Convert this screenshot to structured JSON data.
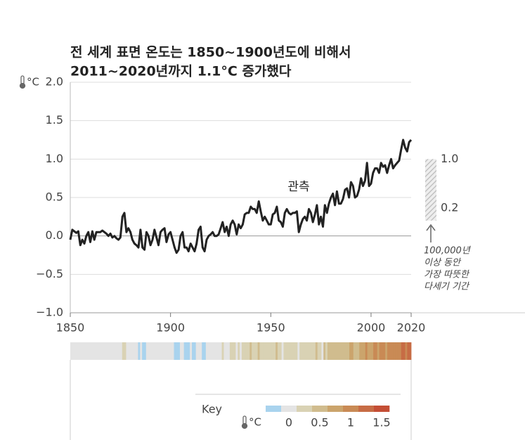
{
  "chart_data": {
    "type": "line",
    "title": [
      "전 세계 표면 온도는 1850~1900년도에 비해서",
      "2011~2020년까지 1.1°C 증가했다"
    ],
    "y_unit": "°C",
    "series_label": "관측",
    "color": "#222222",
    "grid": true,
    "xlim": [
      1850,
      2020
    ],
    "xticks": [
      1850,
      1900,
      1950,
      2000,
      2020
    ],
    "ylim": [
      -1.0,
      2.0
    ],
    "yticks": [
      {
        "value": 2.0,
        "label": "2.0"
      },
      {
        "value": 1.5,
        "label": "1.5"
      },
      {
        "value": 1.0,
        "label": "1.0"
      },
      {
        "value": 0.5,
        "label": "0.5"
      },
      {
        "value": 0.0,
        "label": "0.0"
      },
      {
        "value": -0.5,
        "label": "−0.5"
      },
      {
        "value": -1.0,
        "label": "−1.0"
      }
    ],
    "x": [
      1850,
      1851,
      1852,
      1853,
      1854,
      1855,
      1856,
      1857,
      1858,
      1859,
      1860,
      1861,
      1862,
      1863,
      1864,
      1865,
      1866,
      1867,
      1868,
      1869,
      1870,
      1871,
      1872,
      1873,
      1874,
      1875,
      1876,
      1877,
      1878,
      1879,
      1880,
      1881,
      1882,
      1883,
      1884,
      1885,
      1886,
      1887,
      1888,
      1889,
      1890,
      1891,
      1892,
      1893,
      1894,
      1895,
      1896,
      1897,
      1898,
      1899,
      1900,
      1901,
      1902,
      1903,
      1904,
      1905,
      1906,
      1907,
      1908,
      1909,
      1910,
      1911,
      1912,
      1913,
      1914,
      1915,
      1916,
      1917,
      1918,
      1919,
      1920,
      1921,
      1922,
      1923,
      1924,
      1925,
      1926,
      1927,
      1928,
      1929,
      1930,
      1931,
      1932,
      1933,
      1934,
      1935,
      1936,
      1937,
      1938,
      1939,
      1940,
      1941,
      1942,
      1943,
      1944,
      1945,
      1946,
      1947,
      1948,
      1949,
      1950,
      1951,
      1952,
      1953,
      1954,
      1955,
      1956,
      1957,
      1958,
      1959,
      1960,
      1961,
      1962,
      1963,
      1964,
      1965,
      1966,
      1967,
      1968,
      1969,
      1970,
      1971,
      1972,
      1973,
      1974,
      1975,
      1976,
      1977,
      1978,
      1979,
      1980,
      1981,
      1982,
      1983,
      1984,
      1985,
      1986,
      1987,
      1988,
      1989,
      1990,
      1991,
      1992,
      1993,
      1994,
      1995,
      1996,
      1997,
      1998,
      1999,
      2000,
      2001,
      2002,
      2003,
      2004,
      2005,
      2006,
      2007,
      2008,
      2009,
      2010,
      2011,
      2012,
      2013,
      2014,
      2015,
      2016,
      2017,
      2018,
      2019,
      2020
    ],
    "values": [
      -0.05,
      0.08,
      0.06,
      0.04,
      0.06,
      -0.12,
      -0.05,
      -0.1,
      0.0,
      0.05,
      -0.08,
      0.06,
      -0.05,
      0.05,
      0.05,
      0.05,
      0.07,
      0.05,
      0.03,
      0.0,
      0.03,
      -0.02,
      0.0,
      -0.03,
      -0.05,
      -0.02,
      0.25,
      0.3,
      0.05,
      0.1,
      0.05,
      -0.05,
      -0.1,
      -0.12,
      -0.15,
      0.08,
      -0.15,
      -0.18,
      0.05,
      0.0,
      -0.12,
      -0.05,
      0.08,
      -0.02,
      -0.12,
      0.05,
      0.08,
      0.1,
      -0.08,
      0.02,
      0.05,
      -0.05,
      -0.15,
      -0.22,
      -0.18,
      0.0,
      0.05,
      -0.15,
      -0.15,
      -0.2,
      -0.1,
      -0.15,
      -0.2,
      -0.1,
      0.08,
      0.12,
      -0.15,
      -0.2,
      -0.05,
      0.0,
      0.02,
      0.05,
      0.0,
      0.0,
      0.02,
      0.1,
      0.18,
      0.05,
      0.12,
      0.0,
      0.15,
      0.2,
      0.15,
      0.02,
      0.15,
      0.1,
      0.15,
      0.28,
      0.3,
      0.3,
      0.38,
      0.35,
      0.35,
      0.3,
      0.45,
      0.32,
      0.2,
      0.25,
      0.2,
      0.15,
      0.15,
      0.28,
      0.3,
      0.38,
      0.2,
      0.18,
      0.12,
      0.3,
      0.35,
      0.3,
      0.28,
      0.3,
      0.3,
      0.32,
      0.05,
      0.15,
      0.22,
      0.25,
      0.2,
      0.35,
      0.3,
      0.18,
      0.28,
      0.4,
      0.15,
      0.25,
      0.12,
      0.4,
      0.3,
      0.42,
      0.5,
      0.55,
      0.4,
      0.58,
      0.42,
      0.42,
      0.48,
      0.6,
      0.62,
      0.5,
      0.7,
      0.65,
      0.5,
      0.52,
      0.6,
      0.75,
      0.65,
      0.72,
      0.95,
      0.65,
      0.68,
      0.82,
      0.88,
      0.88,
      0.82,
      0.95,
      0.9,
      0.92,
      0.82,
      0.92,
      1.0,
      0.88,
      0.92,
      0.95,
      0.98,
      1.12,
      1.25,
      1.15,
      1.1,
      1.22,
      1.25
    ],
    "warm_period": {
      "range": [
        0.2,
        1.0
      ],
      "labels": [
        "1.0",
        "0.2"
      ],
      "note": [
        "100,000년",
        "이상 동안",
        "가장 따뜻한",
        "다세기 기간"
      ]
    },
    "key": {
      "title": "Key",
      "unit": "°C",
      "range": [
        -0.375,
        1.625
      ],
      "ticks": [
        0,
        0.5,
        1,
        1.5
      ],
      "colors": [
        "#a9d3ee",
        "#e4e4e4",
        "#d9d2b4",
        "#d0bc8e",
        "#cba46c",
        "#c98a55",
        "#c76c45",
        "#c44e35"
      ]
    }
  }
}
